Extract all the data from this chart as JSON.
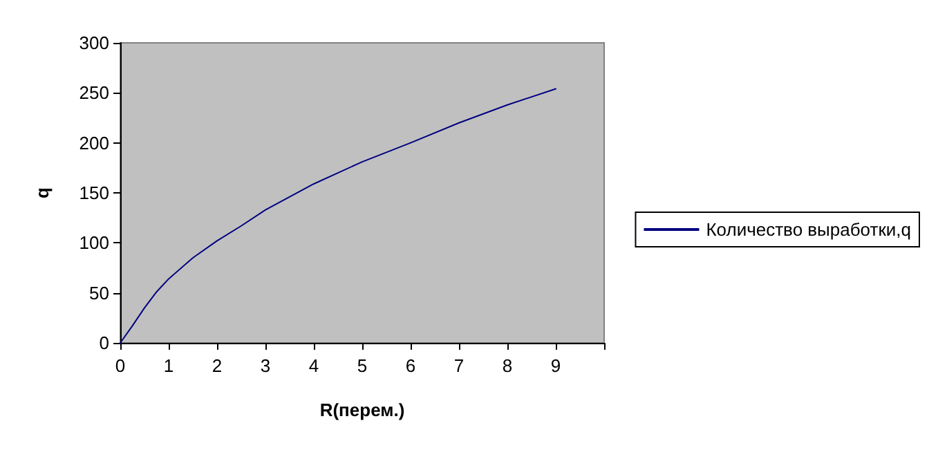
{
  "chart_data": {
    "type": "line",
    "xlabel": "R(перем.)",
    "ylabel": "q",
    "x": [
      0,
      0.25,
      0.5,
      0.75,
      1,
      1.5,
      2,
      2.5,
      3,
      4,
      5,
      6,
      7,
      8,
      9
    ],
    "series": [
      {
        "name": "Количество выработки,q",
        "color": "#000080",
        "values": [
          0,
          17,
          35,
          51,
          64,
          85,
          102,
          117,
          133,
          159,
          181,
          200,
          220,
          238,
          254
        ]
      }
    ],
    "xlim": [
      0,
      10
    ],
    "xticks": [
      0,
      1,
      2,
      3,
      4,
      5,
      6,
      7,
      8,
      9,
      {
        "value": 10,
        "label": null
      }
    ],
    "ylim": [
      0,
      300
    ],
    "yticks": [
      0,
      50,
      100,
      150,
      200,
      250,
      300
    ],
    "grid": false,
    "legend": "right",
    "marker": "none",
    "line_style": "solid"
  }
}
